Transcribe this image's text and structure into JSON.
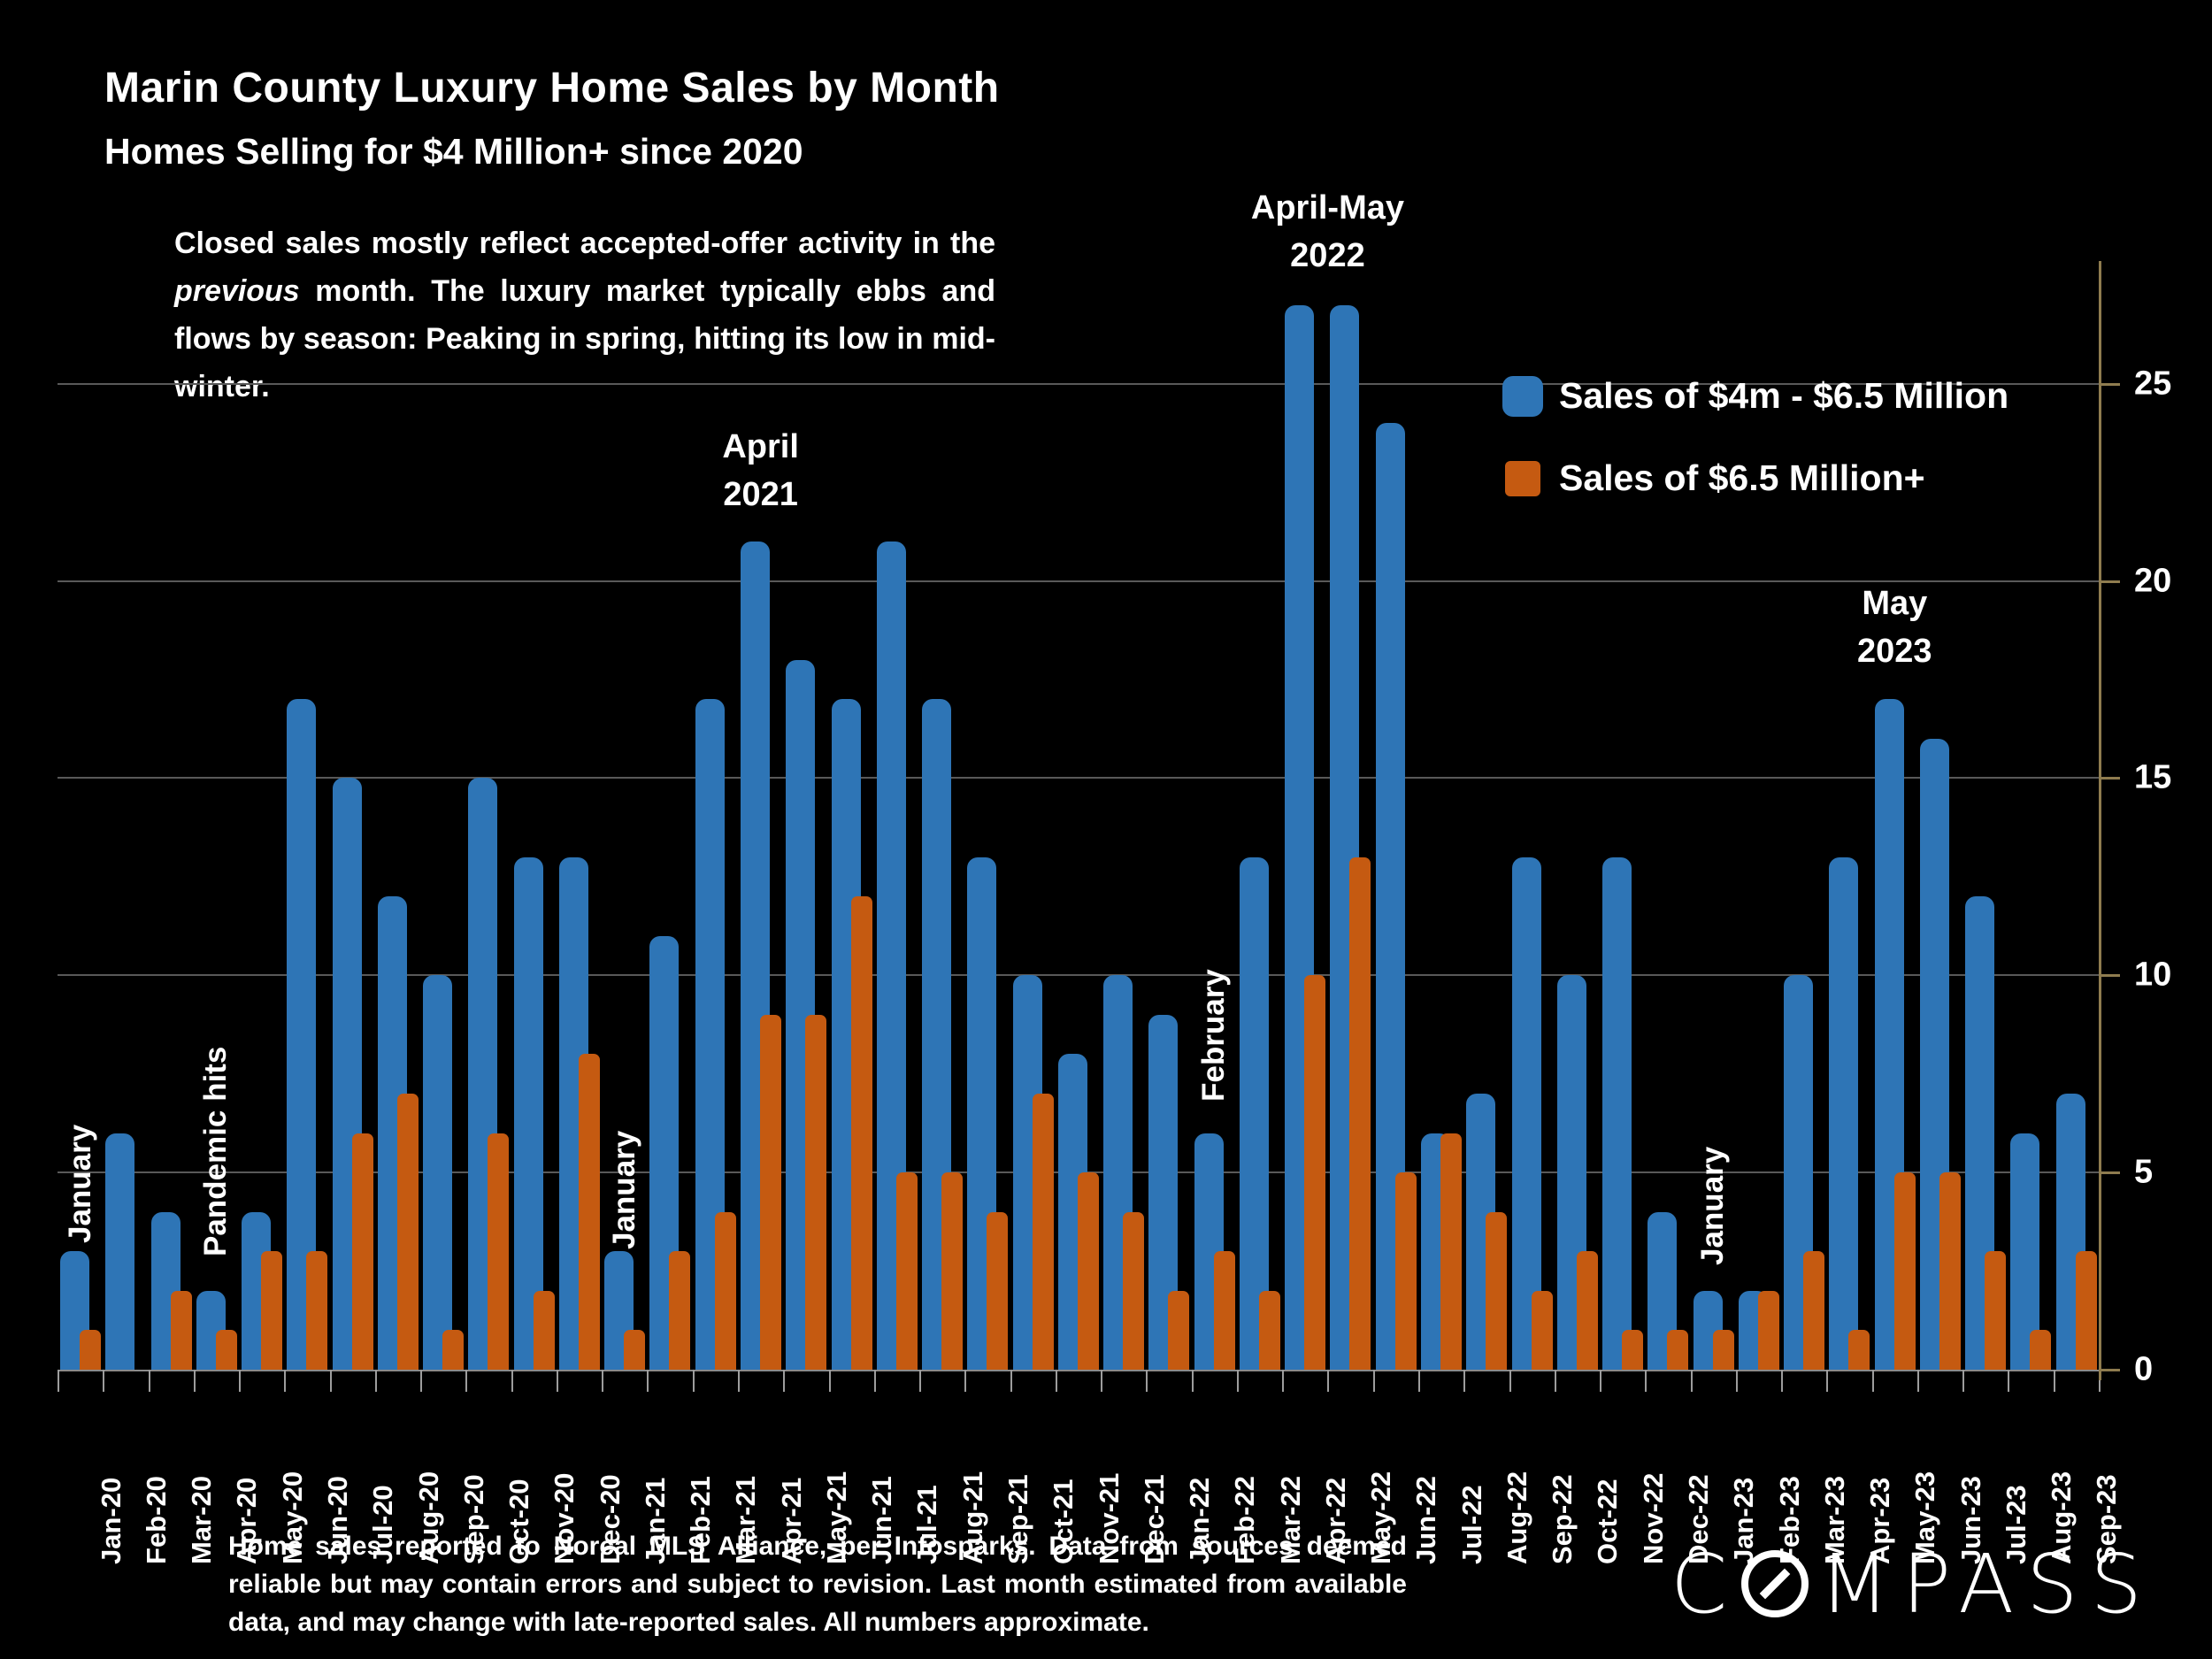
{
  "title": "Marin County Luxury Home Sales by Month",
  "subtitle": "Homes Selling for $4 Million+ since 2020",
  "note": {
    "pre": "Closed sales mostly reflect accepted-offer activity in the ",
    "italic": "previous",
    "post": " month. The luxury market typically ebbs and flows by season: Peaking in spring, hitting its low in mid-winter."
  },
  "legend": [
    {
      "label": "Sales of $4m - $6.5 Million",
      "color": "#2E75B6"
    },
    {
      "label": "Sales of $6.5 Million+",
      "color": "#C55A11"
    }
  ],
  "footer": "Home sales reported to Norcal MLS Alliance, per Infosparks. Data from sources deemed reliable but may contain errors and subject to revision.  Last month estimated from available data, and may change with late-reported sales. All numbers approximate.",
  "logo": {
    "left": "C",
    "right": "MPASS"
  },
  "colors": {
    "background": "#000000",
    "blue": "#2E75B6",
    "orange": "#C55A11",
    "gridline": "#595959",
    "axis_tan": "#8F7C4F",
    "text": "#FFFFFF"
  },
  "chart_data": {
    "type": "bar",
    "title": "Marin County Luxury Home Sales by Month",
    "xlabel": "",
    "ylabel": "",
    "ylim": [
      0,
      28
    ],
    "yticks": [
      0,
      5,
      10,
      15,
      20,
      25
    ],
    "grid": true,
    "legend_position": "upper right",
    "categories": [
      "Jan-20",
      "Feb-20",
      "Mar-20",
      "Apr-20",
      "May-20",
      "Jun-20",
      "Jul-20",
      "Aug-20",
      "Sep-20",
      "Oct-20",
      "Nov-20",
      "Dec-20",
      "Jan-21",
      "Feb-21",
      "Mar-21",
      "Apr-21",
      "May-21",
      "Jun-21",
      "Jul-21",
      "Aug-21",
      "Sep-21",
      "Oct-21",
      "Nov-21",
      "Dec-21",
      "Jan-22",
      "Feb-22",
      "Mar-22",
      "Apr-22",
      "May-22",
      "Jun-22",
      "Jul-22",
      "Aug-22",
      "Sep-22",
      "Oct-22",
      "Nov-22",
      "Dec-22",
      "Jan-23",
      "Feb-23",
      "Mar-23",
      "Apr-23",
      "May-23",
      "Jun-23",
      "Jul-23",
      "Aug-23",
      "Sep-23"
    ],
    "series": [
      {
        "name": "Sales of $4m - $6.5 Million",
        "color": "#2E75B6",
        "values": [
          3,
          6,
          4,
          2,
          4,
          17,
          15,
          12,
          10,
          15,
          13,
          13,
          3,
          11,
          17,
          21,
          18,
          17,
          21,
          17,
          13,
          10,
          8,
          10,
          9,
          6,
          13,
          27,
          27,
          24,
          6,
          7,
          13,
          10,
          13,
          4,
          2,
          2,
          10,
          13,
          17,
          16,
          12,
          6,
          7
        ]
      },
      {
        "name": "Sales of $6.5 Million+",
        "color": "#C55A11",
        "values": [
          1,
          0,
          2,
          1,
          3,
          3,
          6,
          7,
          1,
          6,
          2,
          8,
          1,
          3,
          4,
          9,
          9,
          12,
          5,
          5,
          4,
          7,
          5,
          4,
          2,
          3,
          2,
          10,
          13,
          5,
          6,
          4,
          2,
          3,
          1,
          1,
          1,
          2,
          3,
          1,
          5,
          5,
          3,
          1,
          3
        ]
      }
    ],
    "annotations": [
      {
        "text": "January",
        "month": "Jan-20",
        "style": "vertical"
      },
      {
        "text": "Pandemic hits",
        "month": "Apr-20",
        "style": "vertical"
      },
      {
        "text": "January",
        "month": "Jan-21",
        "style": "vertical"
      },
      {
        "text": "April\n2021",
        "month": "Apr-21",
        "style": "stacked"
      },
      {
        "text": "February",
        "month": "Feb-22",
        "style": "vertical"
      },
      {
        "text": "April-May\n2022",
        "month": "Apr-22|May-22",
        "style": "stacked"
      },
      {
        "text": "January",
        "month": "Jan-23",
        "style": "vertical"
      },
      {
        "text": "May\n2023",
        "month": "May-23",
        "style": "stacked"
      }
    ]
  }
}
